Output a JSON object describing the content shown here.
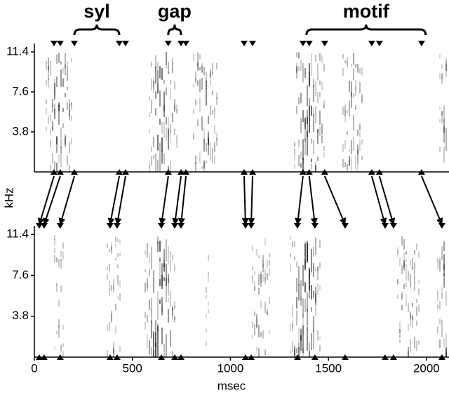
{
  "chart_data": [
    {
      "type": "spectrogram",
      "ylabel": "kHz",
      "ylim": [
        0,
        12.2
      ],
      "yticks": [
        3.8,
        7.6,
        11.4
      ],
      "xlim": [
        0,
        2115
      ],
      "markers": [
        100,
        132,
        204,
        433,
        465,
        683,
        748,
        773,
        1070,
        1113,
        1370,
        1402,
        1481,
        1721,
        1760,
        1975
      ],
      "annotations": [
        {
          "text": "syl",
          "start": 204,
          "end": 433
        },
        {
          "text": "gap",
          "start": 683,
          "end": 748
        },
        {
          "text": "motif",
          "start": 1388,
          "end": 1996
        }
      ]
    },
    {
      "type": "spectrogram",
      "xlabel": "msec",
      "ylim": [
        0,
        12.2
      ],
      "yticks": [
        3.8,
        7.6,
        11.4
      ],
      "xlim": [
        0,
        2115
      ],
      "xticks": [
        0,
        500,
        1000,
        1500,
        2000
      ],
      "markers": [
        25,
        50,
        132,
        386,
        422,
        648,
        716,
        748,
        1077,
        1106,
        1342,
        1431,
        1585,
        1789,
        1832,
        2079
      ]
    }
  ]
}
